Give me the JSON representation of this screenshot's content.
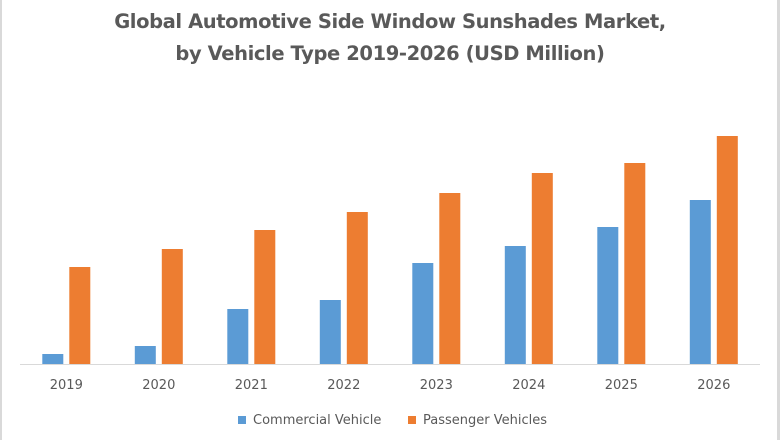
{
  "chart_data": {
    "type": "bar",
    "title": "Global Automotive Side Window Sunshades Market, by Vehicle Type 2019-2026 (USD Million)",
    "title_lines": [
      "Global Automotive Side Window Sunshades Market,",
      "by Vehicle Type 2019-2026 (USD Million)"
    ],
    "xlabel": "",
    "ylabel": "",
    "categories": [
      "2019",
      "2020",
      "2021",
      "2022",
      "2023",
      "2024",
      "2025",
      "2026"
    ],
    "series": [
      {
        "name": "Commercial Vehicle",
        "color": "#5b9bd5",
        "values": [
          10,
          18,
          55,
          64,
          101,
          118,
          137,
          164
        ]
      },
      {
        "name": "Passenger Vehicles",
        "color": "#ed7d31",
        "values": [
          97,
          115,
          134,
          152,
          171,
          191,
          201,
          228
        ]
      }
    ],
    "ylim": [
      0,
      250
    ],
    "value_note": "No y-axis shown; values are relative estimates proportional to bar heights",
    "grid": false,
    "y_axis_visible": false,
    "legend_position": "bottom"
  },
  "colors": {
    "text": "#595959",
    "axis": "#d9d9d9",
    "border": "#d9d9d9"
  }
}
